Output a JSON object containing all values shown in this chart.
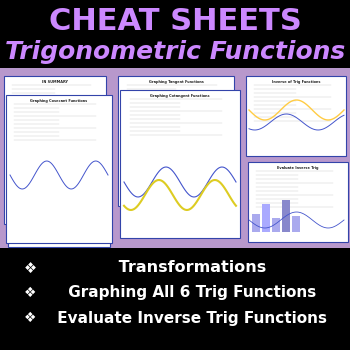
{
  "bg_color": "#000000",
  "title1": "CHEAT SHEETS",
  "title2": "Trigonometric Functions",
  "title1_color": "#cc88ff",
  "title2_color": "#cc88ff",
  "title1_fontsize": 22,
  "title2_fontsize": 18,
  "bullet_symbol": "❖",
  "bullets": [
    " Transformations",
    " Graphing All 6 Trig Functions",
    " Evaluate Inverse Trig Functions"
  ],
  "bullet_color": "#ffffff",
  "bullet_fontsize": 11.5,
  "purple_bg": "#b898cc",
  "paper_white": "#ffffff",
  "paper_border": "#3344aa",
  "yellow_color": "#ddcc22",
  "blue_curve": "#4455cc",
  "lavender_bar": "#aaaaee"
}
